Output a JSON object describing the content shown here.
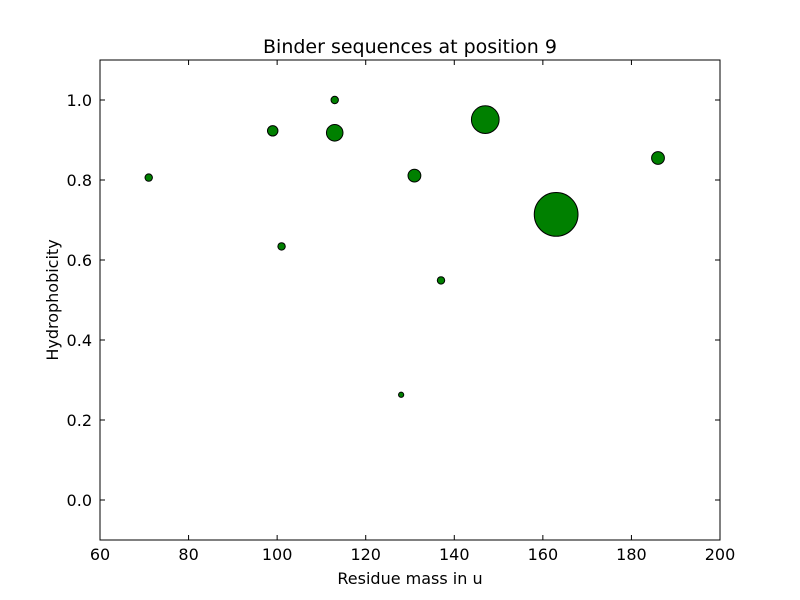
{
  "chart_data": {
    "type": "scatter",
    "title": "Binder sequences at position 9",
    "xlabel": "Residue mass in u",
    "ylabel": "Hydrophobicity",
    "xlim": [
      60,
      200
    ],
    "ylim": [
      -0.1,
      1.1
    ],
    "xticks": [
      60,
      80,
      100,
      120,
      140,
      160,
      180,
      200
    ],
    "yticks": [
      0.0,
      0.2,
      0.4,
      0.6,
      0.8,
      1.0
    ],
    "xtick_labels": [
      "60",
      "80",
      "100",
      "120",
      "140",
      "160",
      "180",
      "200"
    ],
    "ytick_labels": [
      "0.0",
      "0.2",
      "0.4",
      "0.6",
      "0.8",
      "1.0"
    ],
    "grid": false,
    "marker_color": "#008000",
    "marker_edge_color": "#000000",
    "points": [
      {
        "x": 71,
        "y": 0.806,
        "size": 1
      },
      {
        "x": 99,
        "y": 0.923,
        "size": 2
      },
      {
        "x": 101,
        "y": 0.634,
        "size": 1
      },
      {
        "x": 113,
        "y": 1.0,
        "size": 1
      },
      {
        "x": 113,
        "y": 0.918,
        "size": 5
      },
      {
        "x": 128,
        "y": 0.263,
        "size": 0.5
      },
      {
        "x": 131,
        "y": 0.811,
        "size": 3
      },
      {
        "x": 137,
        "y": 0.549,
        "size": 1
      },
      {
        "x": 147,
        "y": 0.951,
        "size": 14
      },
      {
        "x": 163,
        "y": 0.714,
        "size": 35
      },
      {
        "x": 186,
        "y": 0.855,
        "size": 3
      }
    ]
  }
}
